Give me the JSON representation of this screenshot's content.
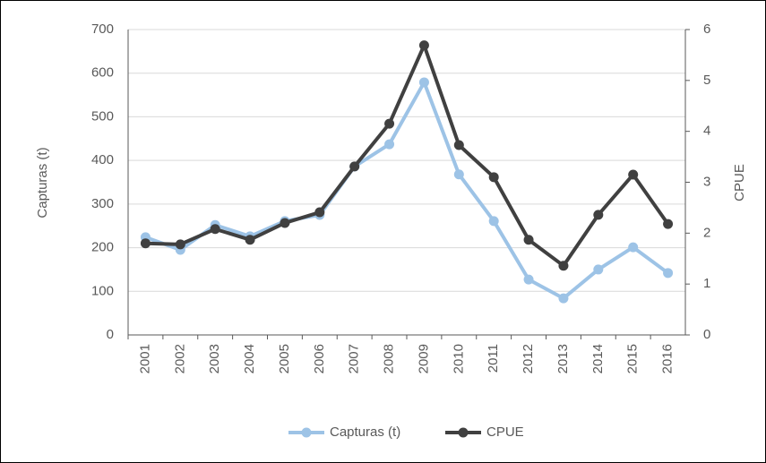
{
  "chart_data": {
    "type": "line",
    "categories": [
      "2001",
      "2002",
      "2003",
      "2004",
      "2005",
      "2006",
      "2007",
      "2008",
      "2009",
      "2010",
      "2011",
      "2012",
      "2013",
      "2014",
      "2015",
      "2016"
    ],
    "ylabel": "Capturas (t)",
    "y2label": "CPUE",
    "ylim": [
      0,
      700
    ],
    "yticks": [
      0,
      100,
      200,
      300,
      400,
      500,
      600,
      700
    ],
    "y2lim": [
      0,
      6
    ],
    "y2ticks": [
      0,
      1,
      2,
      3,
      4,
      5,
      6
    ],
    "grid": true,
    "legend": "bottom",
    "series": [
      {
        "name": "Capturas (t)",
        "color": "#9dc3e6",
        "values": [
          224,
          195,
          252,
          226,
          261,
          275,
          386,
          437,
          579,
          368,
          261,
          127,
          84,
          150,
          201,
          142
        ]
      },
      {
        "name": "CPUE",
        "color": "#404040",
        "axis": "y2",
        "values": [
          1.8,
          1.78,
          2.08,
          1.87,
          2.2,
          2.41,
          3.31,
          4.15,
          5.69,
          3.73,
          3.1,
          1.87,
          1.36,
          2.36,
          3.15,
          2.18
        ]
      }
    ]
  }
}
